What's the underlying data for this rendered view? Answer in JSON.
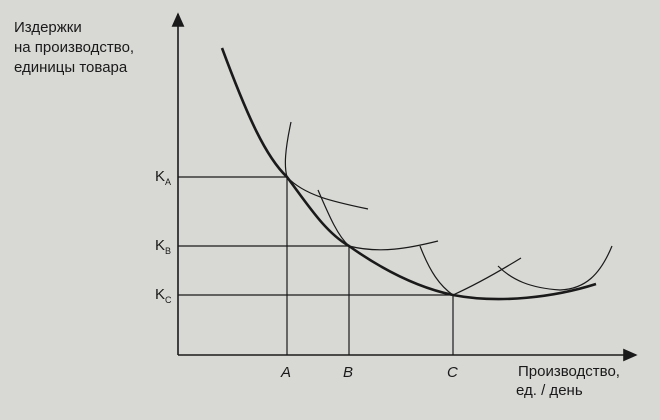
{
  "y_axis_label": {
    "line1": "Издержки",
    "line2": "на производство,",
    "line3": "единицы товара"
  },
  "x_axis_label": {
    "line1": "Производство,",
    "line2": "ед. / день"
  },
  "y_ticks": [
    {
      "main": "K",
      "sub": "A"
    },
    {
      "main": "K",
      "sub": "B"
    },
    {
      "main": "K",
      "sub": "C"
    }
  ],
  "x_ticks": [
    "A",
    "B",
    "C"
  ],
  "colors": {
    "ink": "#1a1a1a",
    "paper": "#d8d8d4"
  }
}
